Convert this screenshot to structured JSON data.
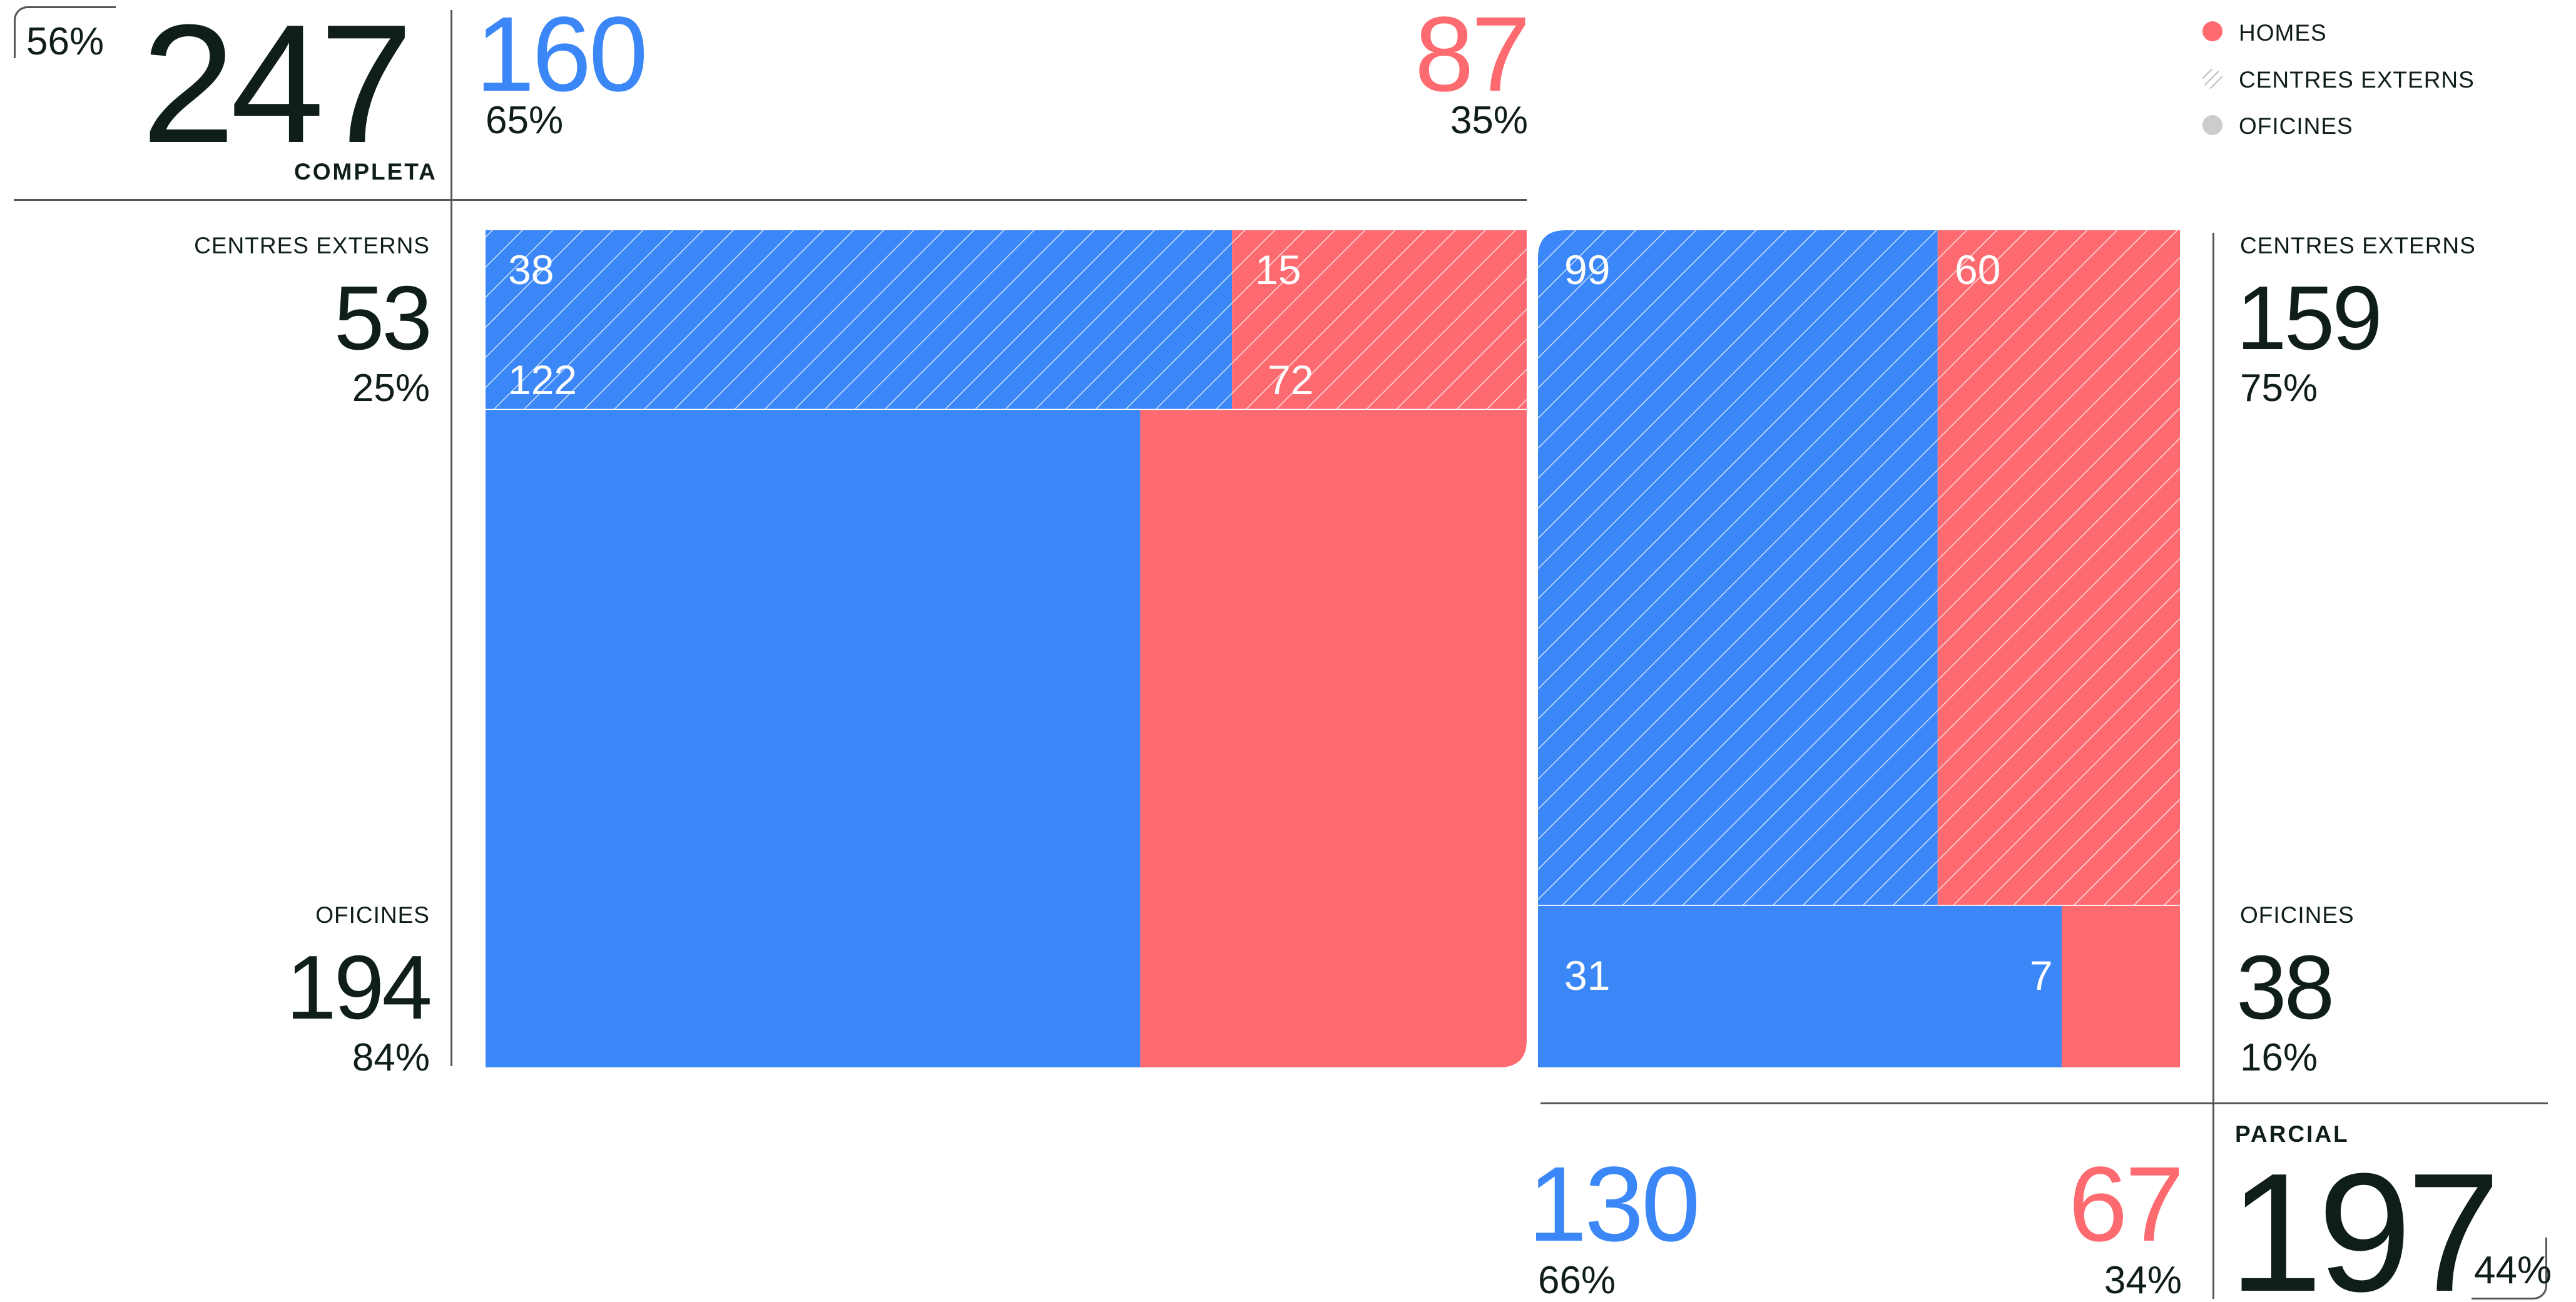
{
  "colors": {
    "homes": "#fd6b71",
    "dones": "#3b87f7",
    "oficines_legend": "#cccccc",
    "text": "#0f1f17"
  },
  "legend": {
    "items": [
      {
        "label": "HOMES",
        "marker": "red-dot"
      },
      {
        "label": "CENTRES EXTERNS",
        "marker": "hatch"
      },
      {
        "label": "OFICINES",
        "marker": "grey-dot"
      }
    ]
  },
  "completa": {
    "label": "COMPLETA",
    "total": "247",
    "share": "56%",
    "blue_total": "160",
    "blue_pct": "65%",
    "red_total": "87",
    "red_pct": "35%",
    "centres_label": "CENTRES EXTERNS",
    "centres_total": "53",
    "centres_pct": "25%",
    "oficines_label": "OFICINES",
    "oficines_total": "194",
    "oficines_pct": "84%"
  },
  "parcial": {
    "label": "PARCIAL",
    "total": "197",
    "share": "44%",
    "blue_total": "130",
    "blue_pct": "66%",
    "red_total": "67",
    "red_pct": "34%",
    "centres_label": "CENTRES EXTERNS",
    "centres_total": "159",
    "centres_pct": "75%",
    "oficines_label": "OFICINES",
    "oficines_total": "38",
    "oficines_pct": "16%"
  },
  "chart_data": {
    "type": "bar",
    "title": "",
    "groups": [
      "COMPLETA",
      "PARCIAL"
    ],
    "series": [
      {
        "name": "CENTRES EXTERNS",
        "dones": [
          38,
          99
        ],
        "homes": [
          15,
          60
        ]
      },
      {
        "name": "OFICINES",
        "dones": [
          122,
          31
        ],
        "homes": [
          72,
          7
        ]
      }
    ],
    "totals": {
      "COMPLETA": 247,
      "PARCIAL": 197
    },
    "legend_position": "top-right"
  }
}
